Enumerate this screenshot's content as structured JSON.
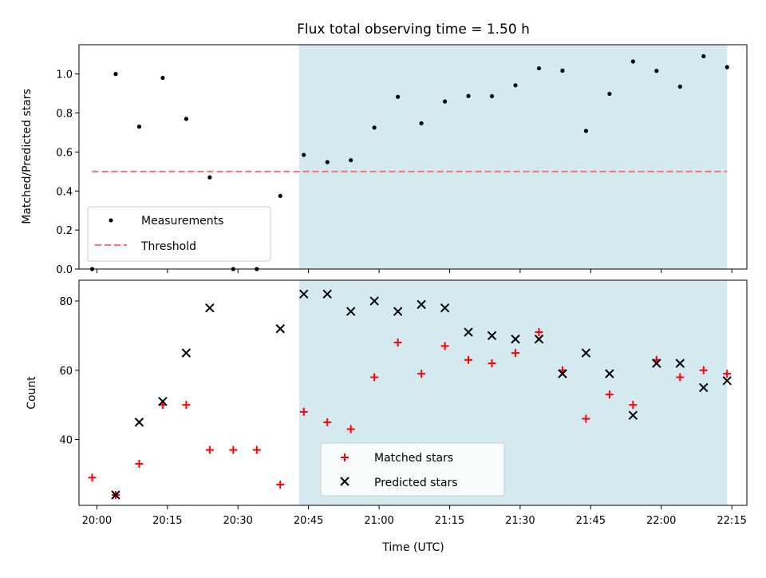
{
  "title": "Flux total observing time = 1.50 h",
  "chart_data": [
    {
      "type": "scatter",
      "ylabel": "Matched/Predicted stars",
      "ylim": [
        0,
        1.15
      ],
      "yticks": [
        0.0,
        0.2,
        0.4,
        0.6,
        0.8,
        1.0
      ],
      "ytick_labels": [
        "0.0",
        "0.2",
        "0.4",
        "0.6",
        "0.8",
        "1.0"
      ],
      "legend_position": "lower-left",
      "series": [
        {
          "name": "Measurements",
          "color": "#000000",
          "marker": "dot",
          "points": [
            {
              "x": "19:59",
              "y": 0.0
            },
            {
              "x": "20:04",
              "y": 1.0
            },
            {
              "x": "20:09",
              "y": 0.73
            },
            {
              "x": "20:14",
              "y": 0.98
            },
            {
              "x": "20:19",
              "y": 0.77
            },
            {
              "x": "20:24",
              "y": 0.47
            },
            {
              "x": "20:29",
              "y": 0.0
            },
            {
              "x": "20:34",
              "y": 0.0
            },
            {
              "x": "20:39",
              "y": 0.375
            },
            {
              "x": "20:44",
              "y": 0.585
            },
            {
              "x": "20:49",
              "y": 0.548
            },
            {
              "x": "20:54",
              "y": 0.558
            },
            {
              "x": "20:59",
              "y": 0.725
            },
            {
              "x": "21:04",
              "y": 0.883
            },
            {
              "x": "21:09",
              "y": 0.747
            },
            {
              "x": "21:14",
              "y": 0.859
            },
            {
              "x": "21:19",
              "y": 0.887
            },
            {
              "x": "21:24",
              "y": 0.886
            },
            {
              "x": "21:29",
              "y": 0.942
            },
            {
              "x": "21:34",
              "y": 1.029
            },
            {
              "x": "21:39",
              "y": 1.017
            },
            {
              "x": "21:44",
              "y": 0.708
            },
            {
              "x": "21:49",
              "y": 0.898
            },
            {
              "x": "21:54",
              "y": 1.064
            },
            {
              "x": "21:59",
              "y": 1.016
            },
            {
              "x": "22:04",
              "y": 0.935
            },
            {
              "x": "22:09",
              "y": 1.091
            },
            {
              "x": "22:14",
              "y": 1.035
            }
          ]
        },
        {
          "name": "Threshold",
          "color": "#ff7070",
          "line": "dashed",
          "points": [
            {
              "x": "19:59",
              "y": 0.5
            },
            {
              "x": "22:14",
              "y": 0.5
            }
          ]
        }
      ],
      "shaded_span": {
        "x0": "20:43",
        "x1": "22:14",
        "color": "#d4eaf0"
      }
    },
    {
      "type": "scatter",
      "xlabel": "Time (UTC)",
      "ylabel": "Count",
      "ylim": [
        21,
        86
      ],
      "yticks": [
        40,
        60,
        80
      ],
      "ytick_labels": [
        "40",
        "60",
        "80"
      ],
      "xticks": [
        "20:00",
        "20:15",
        "20:30",
        "20:45",
        "21:00",
        "21:15",
        "21:30",
        "21:45",
        "22:00",
        "22:15"
      ],
      "legend_position": "lower-center",
      "series": [
        {
          "name": "Matched stars",
          "color": "#ff0000",
          "marker": "plus",
          "points": [
            {
              "x": "19:59",
              "y": 29
            },
            {
              "x": "20:04",
              "y": 24
            },
            {
              "x": "20:09",
              "y": 33
            },
            {
              "x": "20:14",
              "y": 50
            },
            {
              "x": "20:19",
              "y": 50
            },
            {
              "x": "20:24",
              "y": 37
            },
            {
              "x": "20:29",
              "y": 37
            },
            {
              "x": "20:34",
              "y": 37
            },
            {
              "x": "20:39",
              "y": 27
            },
            {
              "x": "20:44",
              "y": 48
            },
            {
              "x": "20:49",
              "y": 45
            },
            {
              "x": "20:54",
              "y": 43
            },
            {
              "x": "20:59",
              "y": 58
            },
            {
              "x": "21:04",
              "y": 68
            },
            {
              "x": "21:09",
              "y": 59
            },
            {
              "x": "21:14",
              "y": 67
            },
            {
              "x": "21:19",
              "y": 63
            },
            {
              "x": "21:24",
              "y": 62
            },
            {
              "x": "21:29",
              "y": 65
            },
            {
              "x": "21:34",
              "y": 71
            },
            {
              "x": "21:39",
              "y": 60
            },
            {
              "x": "21:44",
              "y": 46
            },
            {
              "x": "21:49",
              "y": 53
            },
            {
              "x": "21:54",
              "y": 50
            },
            {
              "x": "21:59",
              "y": 63
            },
            {
              "x": "22:04",
              "y": 58
            },
            {
              "x": "22:09",
              "y": 60
            },
            {
              "x": "22:14",
              "y": 59
            }
          ]
        },
        {
          "name": "Predicted stars",
          "color": "#000000",
          "marker": "x",
          "points": [
            {
              "x": "20:04",
              "y": 24
            },
            {
              "x": "20:09",
              "y": 45
            },
            {
              "x": "20:14",
              "y": 51
            },
            {
              "x": "20:19",
              "y": 65
            },
            {
              "x": "20:24",
              "y": 78
            },
            {
              "x": "20:39",
              "y": 72
            },
            {
              "x": "20:44",
              "y": 82
            },
            {
              "x": "20:49",
              "y": 82
            },
            {
              "x": "20:54",
              "y": 77
            },
            {
              "x": "20:59",
              "y": 80
            },
            {
              "x": "21:04",
              "y": 77
            },
            {
              "x": "21:09",
              "y": 79
            },
            {
              "x": "21:14",
              "y": 78
            },
            {
              "x": "21:19",
              "y": 71
            },
            {
              "x": "21:24",
              "y": 70
            },
            {
              "x": "21:29",
              "y": 69
            },
            {
              "x": "21:34",
              "y": 69
            },
            {
              "x": "21:39",
              "y": 59
            },
            {
              "x": "21:44",
              "y": 65
            },
            {
              "x": "21:49",
              "y": 59
            },
            {
              "x": "21:54",
              "y": 47
            },
            {
              "x": "21:59",
              "y": 62
            },
            {
              "x": "22:04",
              "y": 62
            },
            {
              "x": "22:09",
              "y": 55
            },
            {
              "x": "22:14",
              "y": 57
            }
          ]
        }
      ],
      "shaded_span": {
        "x0": "20:43",
        "x1": "22:14",
        "color": "#d4eaf0"
      }
    }
  ]
}
